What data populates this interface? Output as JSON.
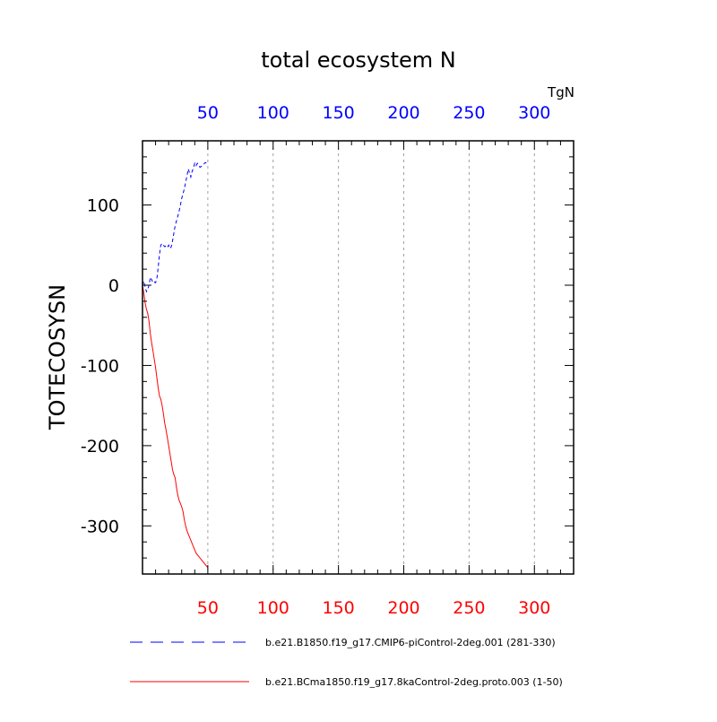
{
  "chart_data": {
    "type": "line",
    "title": "total ecosystem N",
    "ylabel": "TOTECOSYSN",
    "units": "TgN",
    "xlim": [
      0,
      330
    ],
    "ylim": [
      -360,
      180
    ],
    "x_ticks": [
      50,
      100,
      150,
      200,
      250,
      300
    ],
    "x_tick_labels": [
      "50",
      "100",
      "150",
      "200",
      "250",
      "300"
    ],
    "y_ticks": [
      100,
      0,
      -100,
      -200,
      -300
    ],
    "y_tick_labels": [
      "100",
      "0",
      "-100",
      "-200",
      "-300"
    ],
    "colors": {
      "top_axis": "#0000ff",
      "bottom_axis": "#ff0000"
    },
    "series": [
      {
        "name": "b.e21.B1850.f19_g17.CMIP6-piControl-2deg.001 (281-330)",
        "color": "#0000ff",
        "style": "dashed",
        "x": [
          1,
          2,
          3,
          4,
          5,
          6,
          7,
          8,
          9,
          10,
          11,
          12,
          13,
          14,
          15,
          16,
          17,
          18,
          19,
          20,
          21,
          22,
          23,
          24,
          25,
          26,
          27,
          28,
          29,
          30,
          31,
          32,
          33,
          34,
          35,
          36,
          37,
          38,
          39,
          40,
          41,
          42,
          43,
          44,
          45,
          46,
          47,
          48,
          49,
          50
        ],
        "values": [
          5,
          -2,
          -8,
          -5,
          0,
          10,
          7,
          3,
          4,
          3,
          8,
          22,
          38,
          50,
          52,
          50,
          48,
          49,
          47,
          50,
          46,
          48,
          55,
          65,
          74,
          80,
          86,
          92,
          100,
          108,
          114,
          120,
          128,
          136,
          145,
          140,
          135,
          142,
          146,
          152,
          149,
          152,
          150,
          147,
          148,
          150,
          151,
          153,
          152,
          155
        ]
      },
      {
        "name": "b.e21.BCma1850.f19_g17.8kaControl-2deg.proto.003 (1-50)",
        "color": "#ff0000",
        "style": "solid",
        "x": [
          1,
          2,
          3,
          4,
          5,
          6,
          7,
          8,
          9,
          10,
          11,
          12,
          13,
          14,
          15,
          16,
          17,
          18,
          19,
          20,
          21,
          22,
          23,
          24,
          25,
          26,
          27,
          28,
          29,
          30,
          31,
          32,
          33,
          34,
          35,
          36,
          37,
          38,
          39,
          40,
          41,
          42,
          43,
          44,
          45,
          46,
          47,
          48,
          49,
          50
        ],
        "values": [
          -10,
          -22,
          -30,
          -35,
          -45,
          -60,
          -72,
          -82,
          -92,
          -103,
          -115,
          -128,
          -138,
          -142,
          -150,
          -160,
          -172,
          -180,
          -190,
          -200,
          -210,
          -220,
          -230,
          -236,
          -240,
          -252,
          -262,
          -268,
          -272,
          -276,
          -282,
          -292,
          -300,
          -306,
          -310,
          -314,
          -318,
          -322,
          -326,
          -330,
          -334,
          -336,
          -338,
          -340,
          -342,
          -344,
          -346,
          -348,
          -350,
          -352
        ]
      }
    ]
  }
}
